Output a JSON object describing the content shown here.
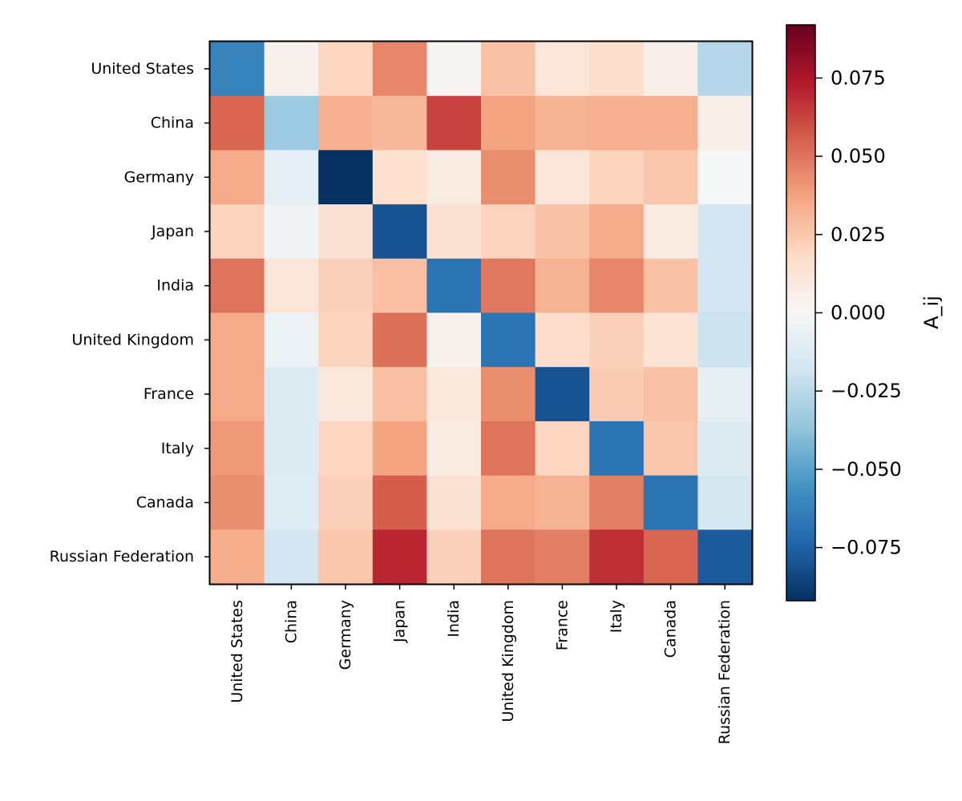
{
  "chart_data": {
    "type": "heatmap",
    "title": "",
    "xlabel": "",
    "ylabel": "",
    "rows": [
      "United States",
      "China",
      "Germany",
      "Japan",
      "India",
      "United Kingdom",
      "France",
      "Italy",
      "Canada",
      "Russian Federation"
    ],
    "columns": [
      "United States",
      "China",
      "Germany",
      "Japan",
      "India",
      "United Kingdom",
      "France",
      "Italy",
      "Canada",
      "Russian Federation"
    ],
    "values": [
      [
        -0.062,
        0.004,
        0.02,
        0.045,
        0.002,
        0.027,
        0.012,
        0.016,
        0.005,
        -0.027
      ],
      [
        0.054,
        -0.034,
        0.033,
        0.03,
        0.063,
        0.037,
        0.032,
        0.033,
        0.033,
        0.006
      ],
      [
        0.035,
        -0.009,
        -0.092,
        0.015,
        0.008,
        0.043,
        0.012,
        0.021,
        0.026,
        -0.001
      ],
      [
        0.021,
        -0.004,
        0.014,
        -0.08,
        0.014,
        0.021,
        0.027,
        0.035,
        0.008,
        -0.017
      ],
      [
        0.05,
        0.012,
        0.022,
        0.028,
        -0.068,
        0.049,
        0.032,
        0.045,
        0.027,
        -0.018
      ],
      [
        0.035,
        -0.006,
        0.021,
        0.051,
        0.004,
        -0.068,
        0.017,
        0.022,
        0.013,
        -0.02
      ],
      [
        0.035,
        -0.013,
        0.01,
        0.028,
        0.01,
        0.043,
        -0.08,
        0.024,
        0.027,
        -0.008
      ],
      [
        0.04,
        -0.013,
        0.02,
        0.037,
        0.008,
        0.05,
        0.02,
        -0.068,
        0.026,
        -0.013
      ],
      [
        0.043,
        -0.011,
        0.022,
        0.056,
        0.014,
        0.035,
        0.032,
        0.047,
        -0.068,
        -0.016
      ],
      [
        0.034,
        -0.018,
        0.026,
        0.07,
        0.022,
        0.05,
        0.047,
        0.068,
        0.054,
        -0.077
      ]
    ],
    "colormap": "RdBu_r",
    "vmin": -0.092,
    "vmax": 0.092,
    "colorbar": {
      "label": "A_ij",
      "ticks": [
        0.075,
        0.05,
        0.025,
        0.0,
        -0.025,
        -0.05,
        -0.075
      ],
      "tick_labels": [
        "0.075",
        "0.050",
        "0.025",
        "0.000",
        "−0.025",
        "−0.050",
        "−0.075"
      ]
    }
  }
}
